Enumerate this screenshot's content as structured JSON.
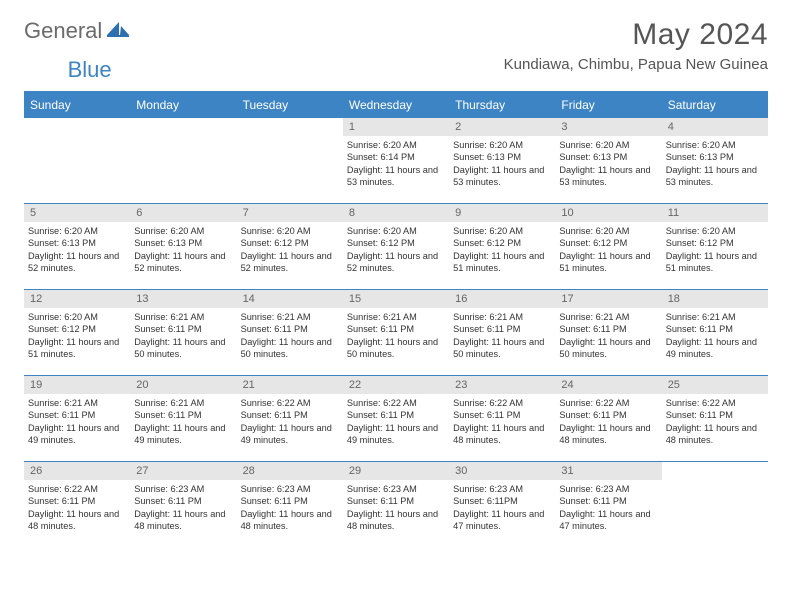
{
  "brand": {
    "part1": "General",
    "part2": "Blue"
  },
  "title": "May 2024",
  "location": "Kundiawa, Chimbu, Papua New Guinea",
  "colors": {
    "accent": "#3d84c4",
    "daynum_bg": "#e6e6e6",
    "text": "#333333",
    "title": "#555555",
    "logo_gray": "#6b6b6b"
  },
  "dayHeaders": [
    "Sunday",
    "Monday",
    "Tuesday",
    "Wednesday",
    "Thursday",
    "Friday",
    "Saturday"
  ],
  "weeks": [
    [
      null,
      null,
      null,
      {
        "n": "1",
        "sr": "6:20 AM",
        "ss": "6:14 PM",
        "dl": "11 hours and 53 minutes."
      },
      {
        "n": "2",
        "sr": "6:20 AM",
        "ss": "6:13 PM",
        "dl": "11 hours and 53 minutes."
      },
      {
        "n": "3",
        "sr": "6:20 AM",
        "ss": "6:13 PM",
        "dl": "11 hours and 53 minutes."
      },
      {
        "n": "4",
        "sr": "6:20 AM",
        "ss": "6:13 PM",
        "dl": "11 hours and 53 minutes."
      }
    ],
    [
      {
        "n": "5",
        "sr": "6:20 AM",
        "ss": "6:13 PM",
        "dl": "11 hours and 52 minutes."
      },
      {
        "n": "6",
        "sr": "6:20 AM",
        "ss": "6:13 PM",
        "dl": "11 hours and 52 minutes."
      },
      {
        "n": "7",
        "sr": "6:20 AM",
        "ss": "6:12 PM",
        "dl": "11 hours and 52 minutes."
      },
      {
        "n": "8",
        "sr": "6:20 AM",
        "ss": "6:12 PM",
        "dl": "11 hours and 52 minutes."
      },
      {
        "n": "9",
        "sr": "6:20 AM",
        "ss": "6:12 PM",
        "dl": "11 hours and 51 minutes."
      },
      {
        "n": "10",
        "sr": "6:20 AM",
        "ss": "6:12 PM",
        "dl": "11 hours and 51 minutes."
      },
      {
        "n": "11",
        "sr": "6:20 AM",
        "ss": "6:12 PM",
        "dl": "11 hours and 51 minutes."
      }
    ],
    [
      {
        "n": "12",
        "sr": "6:20 AM",
        "ss": "6:12 PM",
        "dl": "11 hours and 51 minutes."
      },
      {
        "n": "13",
        "sr": "6:21 AM",
        "ss": "6:11 PM",
        "dl": "11 hours and 50 minutes."
      },
      {
        "n": "14",
        "sr": "6:21 AM",
        "ss": "6:11 PM",
        "dl": "11 hours and 50 minutes."
      },
      {
        "n": "15",
        "sr": "6:21 AM",
        "ss": "6:11 PM",
        "dl": "11 hours and 50 minutes."
      },
      {
        "n": "16",
        "sr": "6:21 AM",
        "ss": "6:11 PM",
        "dl": "11 hours and 50 minutes."
      },
      {
        "n": "17",
        "sr": "6:21 AM",
        "ss": "6:11 PM",
        "dl": "11 hours and 50 minutes."
      },
      {
        "n": "18",
        "sr": "6:21 AM",
        "ss": "6:11 PM",
        "dl": "11 hours and 49 minutes."
      }
    ],
    [
      {
        "n": "19",
        "sr": "6:21 AM",
        "ss": "6:11 PM",
        "dl": "11 hours and 49 minutes."
      },
      {
        "n": "20",
        "sr": "6:21 AM",
        "ss": "6:11 PM",
        "dl": "11 hours and 49 minutes."
      },
      {
        "n": "21",
        "sr": "6:22 AM",
        "ss": "6:11 PM",
        "dl": "11 hours and 49 minutes."
      },
      {
        "n": "22",
        "sr": "6:22 AM",
        "ss": "6:11 PM",
        "dl": "11 hours and 49 minutes."
      },
      {
        "n": "23",
        "sr": "6:22 AM",
        "ss": "6:11 PM",
        "dl": "11 hours and 48 minutes."
      },
      {
        "n": "24",
        "sr": "6:22 AM",
        "ss": "6:11 PM",
        "dl": "11 hours and 48 minutes."
      },
      {
        "n": "25",
        "sr": "6:22 AM",
        "ss": "6:11 PM",
        "dl": "11 hours and 48 minutes."
      }
    ],
    [
      {
        "n": "26",
        "sr": "6:22 AM",
        "ss": "6:11 PM",
        "dl": "11 hours and 48 minutes."
      },
      {
        "n": "27",
        "sr": "6:23 AM",
        "ss": "6:11 PM",
        "dl": "11 hours and 48 minutes."
      },
      {
        "n": "28",
        "sr": "6:23 AM",
        "ss": "6:11 PM",
        "dl": "11 hours and 48 minutes."
      },
      {
        "n": "29",
        "sr": "6:23 AM",
        "ss": "6:11 PM",
        "dl": "11 hours and 48 minutes."
      },
      {
        "n": "30",
        "sr": "6:23 AM",
        "ss": "6:11PM",
        "dl": "11 hours and 47 minutes."
      },
      {
        "n": "31",
        "sr": "6:23 AM",
        "ss": "6:11 PM",
        "dl": "11 hours and 47 minutes."
      },
      null
    ]
  ],
  "labels": {
    "sunrise": "Sunrise:",
    "sunset": "Sunset:",
    "daylight": "Daylight:"
  }
}
